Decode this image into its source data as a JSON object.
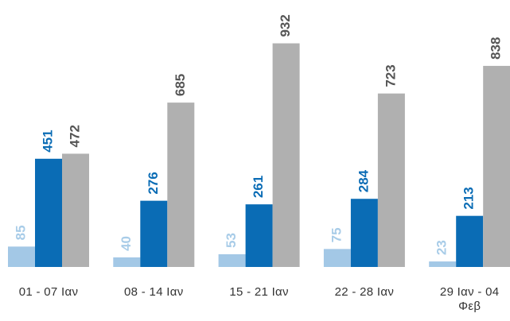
{
  "chart_data": {
    "type": "bar",
    "categories": [
      "01 - 07 Ιαν",
      "08 - 14 Ιαν",
      "15 - 21 Ιαν",
      "22 - 28 Ιαν",
      "29 Ιαν - 04 Φεβ"
    ],
    "series": [
      {
        "color": "#a3c8e6",
        "label_color": "#a8cce8",
        "values": [
          85,
          40,
          53,
          75,
          23
        ]
      },
      {
        "color": "#0a6cb5",
        "label_color": "#0a6cb5",
        "values": [
          451,
          276,
          261,
          284,
          213
        ]
      },
      {
        "color": "#b0b0b0",
        "label_color": "#555555",
        "values": [
          472,
          685,
          932,
          723,
          838
        ]
      }
    ]
  }
}
